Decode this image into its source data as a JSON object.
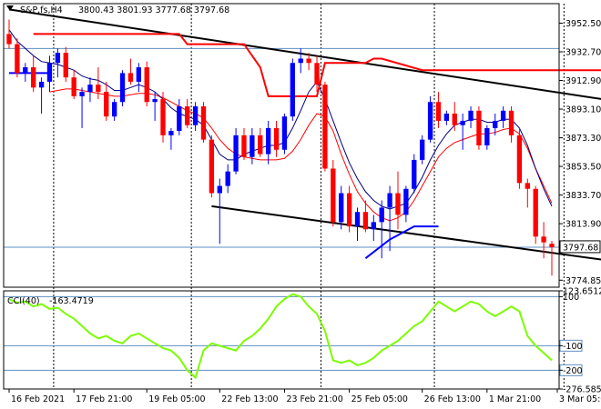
{
  "chart_data": {
    "type": "candlestick",
    "main": {
      "symbol": "S&P,fs,H4",
      "ohlc_text": "3800.43 3801.93 3777.68 3797.68",
      "current_price": 3797.68,
      "current_price_label": "3797.68",
      "ylim": [
        3770.0,
        3966.0
      ],
      "y_ticks": [
        3952.5,
        3932.7,
        3912.9,
        3893.1,
        3873.3,
        3853.5,
        3833.7,
        3813.9,
        3774.85
      ],
      "y_tick_labels": [
        "3952.50",
        "3932.70",
        "3912.90",
        "3893.10",
        "3873.30",
        "3853.50",
        "3833.70",
        "3813.90",
        "3774.85"
      ],
      "candles": [
        [
          3945,
          3955,
          3935,
          3938
        ],
        [
          3938,
          3942,
          3915,
          3918
        ],
        [
          3918,
          3925,
          3912,
          3922
        ],
        [
          3922,
          3930,
          3905,
          3908
        ],
        [
          3908,
          3915,
          3890,
          3912
        ],
        [
          3912,
          3930,
          3905,
          3925
        ],
        [
          3925,
          3935,
          3915,
          3932
        ],
        [
          3932,
          3936,
          3912,
          3915
        ],
        [
          3915,
          3920,
          3900,
          3902
        ],
        [
          3902,
          3908,
          3880,
          3905
        ],
        [
          3905,
          3915,
          3898,
          3910
        ],
        [
          3910,
          3922,
          3900,
          3905
        ],
        [
          3905,
          3912,
          3885,
          3888
        ],
        [
          3888,
          3900,
          3885,
          3898
        ],
        [
          3898,
          3920,
          3895,
          3918
        ],
        [
          3918,
          3928,
          3910,
          3912
        ],
        [
          3912,
          3925,
          3905,
          3922
        ],
        [
          3922,
          3926,
          3895,
          3898
        ],
        [
          3898,
          3905,
          3885,
          3900
        ],
        [
          3900,
          3905,
          3870,
          3875
        ],
        [
          3875,
          3880,
          3865,
          3878
        ],
        [
          3878,
          3900,
          3875,
          3895
        ],
        [
          3895,
          3900,
          3880,
          3882
        ],
        [
          3882,
          3898,
          3878,
          3895
        ],
        [
          3895,
          3898,
          3870,
          3872
        ],
        [
          3872,
          3875,
          3832,
          3835
        ],
        [
          3835,
          3845,
          3800,
          3840
        ],
        [
          3840,
          3855,
          3835,
          3850
        ],
        [
          3850,
          3880,
          3848,
          3875
        ],
        [
          3875,
          3880,
          3858,
          3860
        ],
        [
          3860,
          3880,
          3855,
          3875
        ],
        [
          3875,
          3880,
          3860,
          3862
        ],
        [
          3862,
          3885,
          3855,
          3880
        ],
        [
          3880,
          3885,
          3860,
          3865
        ],
        [
          3865,
          3890,
          3862,
          3888
        ],
        [
          3888,
          3928,
          3885,
          3925
        ],
        [
          3925,
          3935,
          3918,
          3928
        ],
        [
          3928,
          3932,
          3920,
          3925
        ],
        [
          3925,
          3930,
          3905,
          3910
        ],
        [
          3910,
          3912,
          3850,
          3852
        ],
        [
          3852,
          3858,
          3812,
          3815
        ],
        [
          3815,
          3840,
          3810,
          3835
        ],
        [
          3835,
          3840,
          3808,
          3812
        ],
        [
          3812,
          3825,
          3802,
          3822
        ],
        [
          3822,
          3830,
          3808,
          3810
        ],
        [
          3810,
          3820,
          3802,
          3815
        ],
        [
          3815,
          3830,
          3790,
          3825
        ],
        [
          3825,
          3840,
          3795,
          3835
        ],
        [
          3835,
          3850,
          3810,
          3820
        ],
        [
          3820,
          3840,
          3815,
          3838
        ],
        [
          3838,
          3862,
          3835,
          3858
        ],
        [
          3858,
          3875,
          3855,
          3872
        ],
        [
          3872,
          3902,
          3870,
          3898
        ],
        [
          3898,
          3905,
          3880,
          3885
        ],
        [
          3885,
          3892,
          3882,
          3890
        ],
        [
          3890,
          3898,
          3878,
          3882
        ],
        [
          3882,
          3890,
          3865,
          3885
        ],
        [
          3885,
          3895,
          3880,
          3892
        ],
        [
          3892,
          3895,
          3865,
          3868
        ],
        [
          3868,
          3882,
          3865,
          3880
        ],
        [
          3880,
          3890,
          3875,
          3885
        ],
        [
          3885,
          3895,
          3880,
          3892
        ],
        [
          3892,
          3895,
          3870,
          3875
        ],
        [
          3875,
          3880,
          3838,
          3842
        ],
        [
          3842,
          3845,
          3825,
          3838
        ],
        [
          3838,
          3840,
          3800,
          3805
        ],
        [
          3805,
          3815,
          3790,
          3801
        ],
        [
          3800,
          3802,
          3778,
          3797.68
        ]
      ],
      "ma_fast": [
        3948,
        3940,
        3935,
        3930,
        3926,
        3925,
        3924,
        3922,
        3920,
        3916,
        3914,
        3913,
        3910,
        3906,
        3906,
        3908,
        3910,
        3908,
        3905,
        3900,
        3894,
        3890,
        3888,
        3886,
        3882,
        3872,
        3862,
        3858,
        3858,
        3862,
        3864,
        3866,
        3868,
        3868,
        3870,
        3880,
        3892,
        3905,
        3912,
        3900,
        3885,
        3870,
        3856,
        3845,
        3836,
        3830,
        3826,
        3824,
        3826,
        3828,
        3836,
        3846,
        3858,
        3868,
        3876,
        3882,
        3884,
        3886,
        3886,
        3884,
        3884,
        3886,
        3886,
        3880,
        3868,
        3852,
        3838,
        3826
      ],
      "ma_slow": [
        null,
        null,
        null,
        null,
        null,
        3905,
        3906,
        3907,
        3907,
        3906,
        3905,
        3904,
        3903,
        3902,
        3902,
        3903,
        3904,
        3904,
        3903,
        3901,
        3898,
        3895,
        3892,
        3890,
        3887,
        3880,
        3872,
        3866,
        3862,
        3860,
        3859,
        3858,
        3858,
        3858,
        3859,
        3864,
        3872,
        3882,
        3890,
        3888,
        3878,
        3862,
        3848,
        3836,
        3828,
        3822,
        3818,
        3816,
        3818,
        3822,
        3830,
        3840,
        3850,
        3860,
        3866,
        3870,
        3872,
        3874,
        3876,
        3876,
        3877,
        3879,
        3880,
        3876,
        3866,
        3852,
        3840,
        3828
      ],
      "blue_line": [
        3918,
        3918,
        3918,
        3918,
        3918,
        3918,
        null,
        null,
        null,
        null,
        null,
        null,
        null,
        null,
        null,
        null,
        null,
        null,
        null,
        null,
        null,
        null,
        null,
        null,
        null,
        null,
        null,
        null,
        null,
        null,
        null,
        null,
        null,
        null,
        null,
        null,
        null,
        null,
        null,
        null,
        null,
        null,
        null,
        null,
        null,
        null,
        null,
        null,
        null,
        null,
        null,
        null,
        null,
        null,
        null,
        null,
        null,
        null,
        null,
        null,
        null,
        null,
        null,
        null,
        null,
        null,
        null,
        null
      ],
      "blue_line_late": [
        [
          44,
          3790
        ],
        [
          47,
          3803
        ],
        [
          48,
          3806
        ],
        [
          50,
          3812
        ],
        [
          53,
          3812
        ]
      ],
      "red_trailing_stop": [
        [
          3,
          3945
        ],
        [
          21,
          3945
        ],
        [
          22,
          3938
        ],
        [
          29,
          3938
        ],
        [
          31,
          3922
        ],
        [
          32,
          3902
        ],
        [
          38,
          3902
        ],
        [
          39,
          3925
        ],
        [
          41,
          3925
        ],
        [
          44,
          3925
        ],
        [
          45,
          3928
        ],
        [
          46,
          3928
        ],
        [
          51,
          3920
        ],
        [
          73,
          3920
        ],
        [
          76,
          3915
        ],
        [
          78,
          3895
        ],
        [
          80,
          3870
        ]
      ],
      "channel_upper": {
        "from": [
          0,
          3962
        ],
        "to": [
          85,
          3890
        ]
      },
      "channel_lower": {
        "from": [
          25,
          3826
        ],
        "to": [
          85,
          3780
        ]
      },
      "hline_blue": [
        3935,
        3797.68
      ]
    },
    "cci": {
      "label": "CCI(40)",
      "value_label": "-163.4719",
      "ylim": [
        -276.585,
        123.6512
      ],
      "y_ticks": [
        123.6512,
        100,
        -100,
        -200,
        -276.585
      ],
      "y_tick_labels": [
        "123.6512",
        "100",
        "-100",
        "-200",
        "-276.585"
      ],
      "levels": [
        100,
        -100,
        -200
      ],
      "values": [
        90,
        75,
        80,
        60,
        70,
        50,
        55,
        30,
        10,
        -20,
        -50,
        -70,
        -60,
        -80,
        -90,
        -60,
        -50,
        -70,
        -90,
        -110,
        -120,
        -150,
        -200,
        -230,
        -120,
        -90,
        -100,
        -110,
        -120,
        -80,
        -60,
        -30,
        10,
        60,
        90,
        110,
        100,
        60,
        30,
        -40,
        -160,
        -170,
        -160,
        -180,
        -170,
        -150,
        -120,
        -100,
        -80,
        -50,
        -20,
        0,
        40,
        80,
        60,
        40,
        60,
        80,
        70,
        40,
        20,
        40,
        60,
        40,
        -60,
        -100,
        -130,
        -160
      ]
    },
    "x_labels": [
      "16 Feb 2021",
      "17 Feb 21:00",
      "19 Feb 05:00",
      "22 Feb 13:00",
      "23 Feb 21:00",
      "25 Feb 05:00",
      "26 Feb 13:00",
      "1 Mar 21:00",
      "3 Mar 05:00"
    ],
    "x_label_index": [
      0,
      8,
      17,
      26,
      34,
      42,
      51,
      59,
      68
    ],
    "period_separators": [
      5,
      22,
      38,
      52,
      68
    ],
    "colors": {
      "bull": "#0000ff",
      "bear": "#ff0000",
      "ma_fast": "#000080",
      "ma_slow": "#ff0000",
      "trail": "#ff0000",
      "channel": "#000000",
      "cci": "#7cfc00",
      "level": "#5f8fc0",
      "price_tag_bg": "#ffffff"
    }
  }
}
